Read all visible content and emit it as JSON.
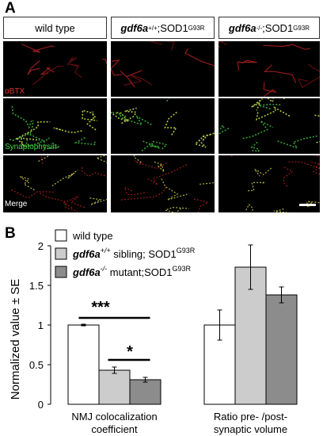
{
  "panel_a": {
    "letter": "A",
    "columns": [
      {
        "label_main": "wild type",
        "label_sup": "",
        "label_suffix": ""
      },
      {
        "label_main": "gdf6a",
        "label_sup": "+/+",
        "label_suffix": ";SOD1",
        "label_sup2": "G93R"
      },
      {
        "label_main": "gdf6a",
        "label_sup": "-/-",
        "label_suffix": ";SOD1",
        "label_sup2": "G93R"
      }
    ],
    "rows": [
      {
        "label": "αBTX",
        "color": "#e03030"
      },
      {
        "label": "Synaptophysin",
        "color": "#44dd44"
      },
      {
        "label": "Merge",
        "color": "#ffffff"
      }
    ]
  },
  "panel_b": {
    "letter": "B",
    "legend": [
      {
        "label": "wild type",
        "color": "#ffffff"
      },
      {
        "label": "gdf6a",
        "sup": "+/+",
        "suffix": " sibling; SOD1",
        "sup2": "G93R",
        "color": "#cccccc"
      },
      {
        "label": "gdf6a",
        "sup": "-/-",
        "suffix": " mutant;SOD1",
        "sup2": "G93R",
        "color": "#8c8c8c"
      }
    ],
    "significance": [
      "***",
      "*"
    ]
  },
  "chart_data": {
    "type": "bar",
    "categories": [
      "NMJ colocalization coefficient",
      "Ratio pre- /post-synaptic volume"
    ],
    "category_lines": [
      [
        "NMJ colocalization",
        "coefficient"
      ],
      [
        "Ratio pre- /post-",
        "synaptic volume"
      ]
    ],
    "series": [
      {
        "name": "wild type",
        "values": [
          1.0,
          1.0
        ],
        "errors": [
          0.01,
          0.19
        ],
        "color": "#ffffff"
      },
      {
        "name": "gdf6a+/+ sibling; SOD1G93R",
        "values": [
          0.43,
          1.73
        ],
        "errors": [
          0.04,
          0.28
        ],
        "color": "#cccccc"
      },
      {
        "name": "gdf6a-/- mutant;SOD1G93R",
        "values": [
          0.31,
          1.38
        ],
        "errors": [
          0.03,
          0.1
        ],
        "color": "#8c8c8c"
      }
    ],
    "ylabel": "Normalized value ± SE",
    "ylim": [
      0,
      2
    ],
    "yticks": [
      0,
      0.5,
      1,
      1.5,
      2
    ],
    "ytick_labels": [
      "0",
      "0.5",
      "1",
      "1.5",
      "2"
    ],
    "grid": false,
    "legend_position": "top-left"
  }
}
